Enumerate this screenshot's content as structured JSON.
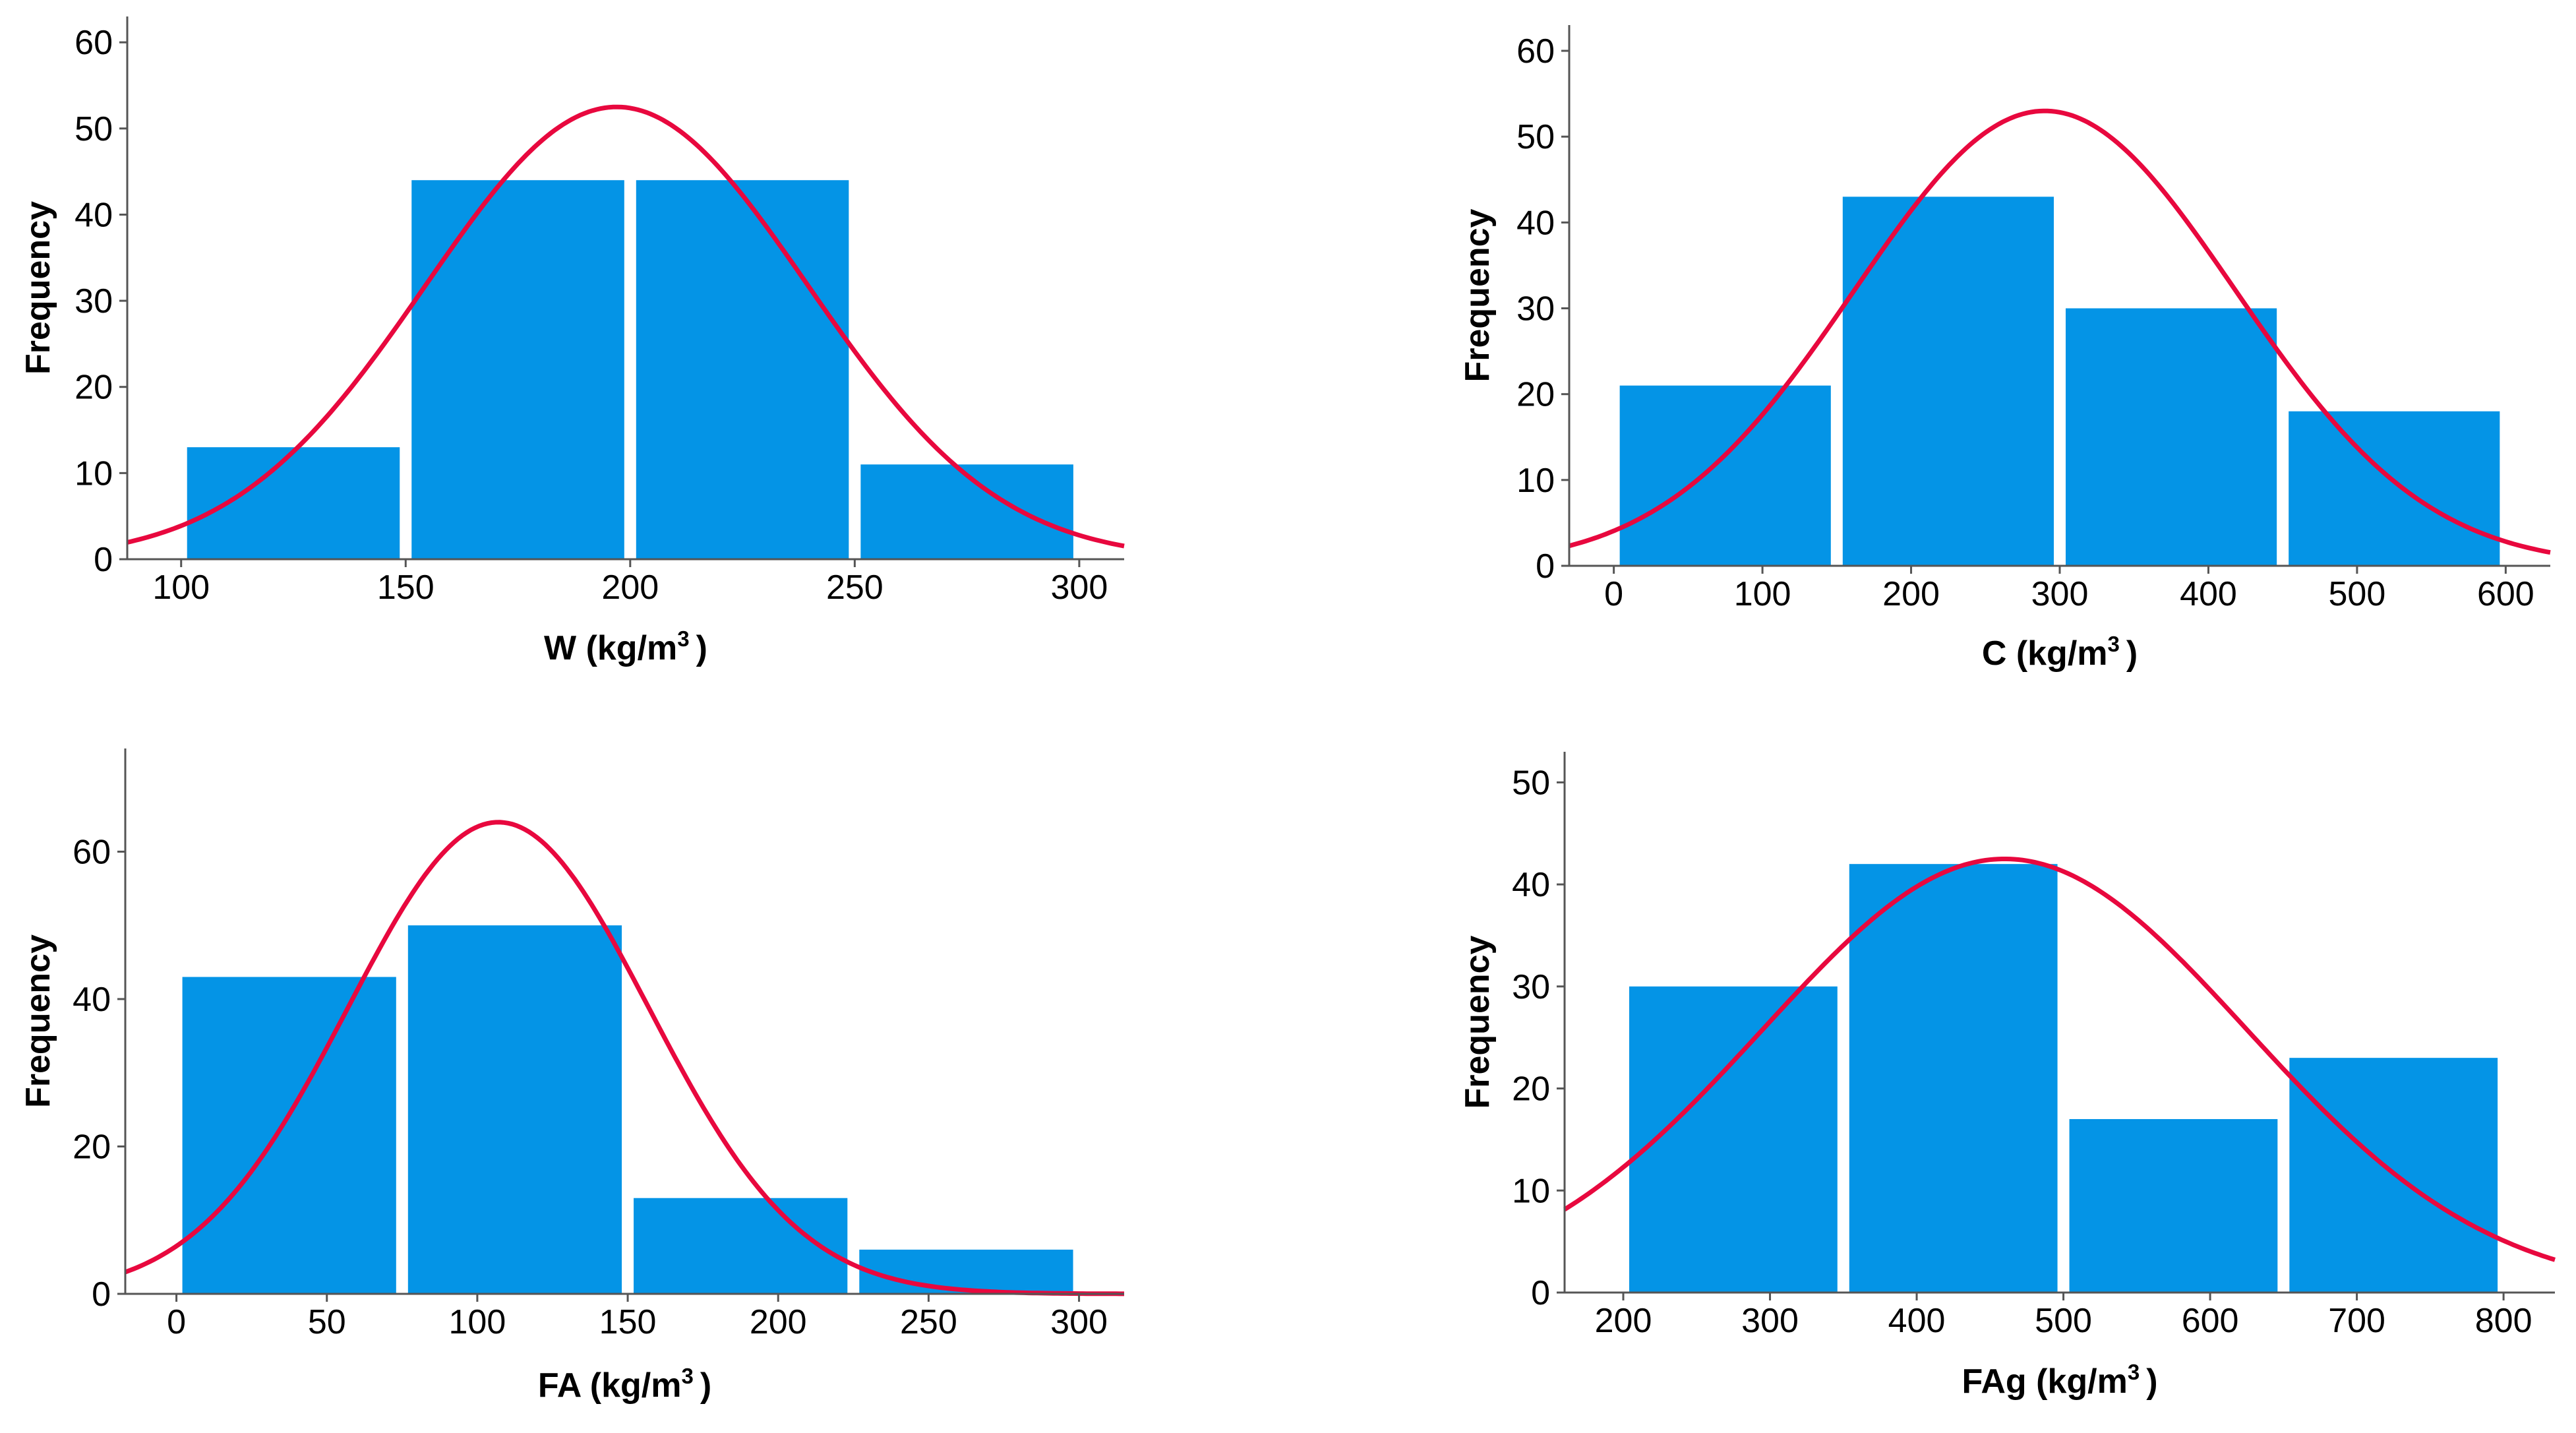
{
  "colors": {
    "bar": "#0494e6",
    "curve": "#e8083e",
    "axis": "#555555",
    "background": "#ffffff"
  },
  "chart_data": [
    {
      "type": "bar",
      "subtype": "histogram-with-normal-curve",
      "xlabel": {
        "text": "W (kg/m",
        "sup": "3",
        "close": ")"
      },
      "ylabel": "Frequency",
      "xlim": [
        88,
        310
      ],
      "ylim": [
        0,
        63
      ],
      "xticks": [
        100,
        150,
        200,
        250,
        300
      ],
      "yticks": [
        0,
        10,
        20,
        30,
        40,
        50,
        60
      ],
      "bins": [
        {
          "from": 100,
          "to": 150,
          "value": 13
        },
        {
          "from": 150,
          "to": 200,
          "value": 44
        },
        {
          "from": 200,
          "to": 250,
          "value": 44
        },
        {
          "from": 250,
          "to": 300,
          "value": 11
        }
      ],
      "normal_curve": {
        "mean": 197,
        "sd": 42.5,
        "peak": 52.5
      }
    },
    {
      "type": "bar",
      "subtype": "histogram-with-normal-curve",
      "xlabel": {
        "text": "C (kg/m",
        "sup": "3",
        "close": ")"
      },
      "ylabel": "Frequency",
      "xlim": [
        -30,
        630
      ],
      "ylim": [
        0,
        63
      ],
      "xticks": [
        0,
        100,
        200,
        300,
        400,
        500,
        600
      ],
      "yticks": [
        0,
        10,
        20,
        30,
        40,
        50,
        60
      ],
      "bins": [
        {
          "from": 0,
          "to": 150,
          "value": 21
        },
        {
          "from": 150,
          "to": 300,
          "value": 43
        },
        {
          "from": 300,
          "to": 450,
          "value": 30
        },
        {
          "from": 450,
          "to": 600,
          "value": 18
        }
      ],
      "normal_curve": {
        "mean": 290,
        "sd": 128,
        "peak": 53
      }
    },
    {
      "type": "bar",
      "subtype": "histogram-with-normal-curve",
      "xlabel": {
        "text": "FA (kg/m",
        "sup": "3",
        "close": ")"
      },
      "ylabel": "Frequency",
      "xlim": [
        -17,
        315
      ],
      "ylim": [
        0,
        74
      ],
      "xticks": [
        0,
        50,
        100,
        150,
        200,
        250,
        300
      ],
      "yticks": [
        0,
        20,
        40,
        60
      ],
      "bins": [
        {
          "from": 0,
          "to": 75,
          "value": 43
        },
        {
          "from": 75,
          "to": 150,
          "value": 50
        },
        {
          "from": 150,
          "to": 225,
          "value": 13
        },
        {
          "from": 225,
          "to": 300,
          "value": 6
        }
      ],
      "normal_curve": {
        "mean": 107,
        "sd": 50,
        "peak": 64
      }
    },
    {
      "type": "bar",
      "subtype": "histogram-with-normal-curve",
      "xlabel": {
        "text": "FAg (kg/m",
        "sup": "3",
        "close": ")"
      },
      "ylabel": "Frequency",
      "xlim": [
        160,
        835
      ],
      "ylim": [
        0,
        53
      ],
      "xticks": [
        200,
        300,
        400,
        500,
        600,
        700,
        800
      ],
      "yticks": [
        0,
        10,
        20,
        30,
        40,
        50
      ],
      "bins": [
        {
          "from": 200,
          "to": 350,
          "value": 30
        },
        {
          "from": 350,
          "to": 500,
          "value": 42
        },
        {
          "from": 500,
          "to": 650,
          "value": 17
        },
        {
          "from": 650,
          "to": 800,
          "value": 23
        }
      ],
      "normal_curve": {
        "mean": 460,
        "sd": 165,
        "peak": 42.5
      }
    }
  ]
}
